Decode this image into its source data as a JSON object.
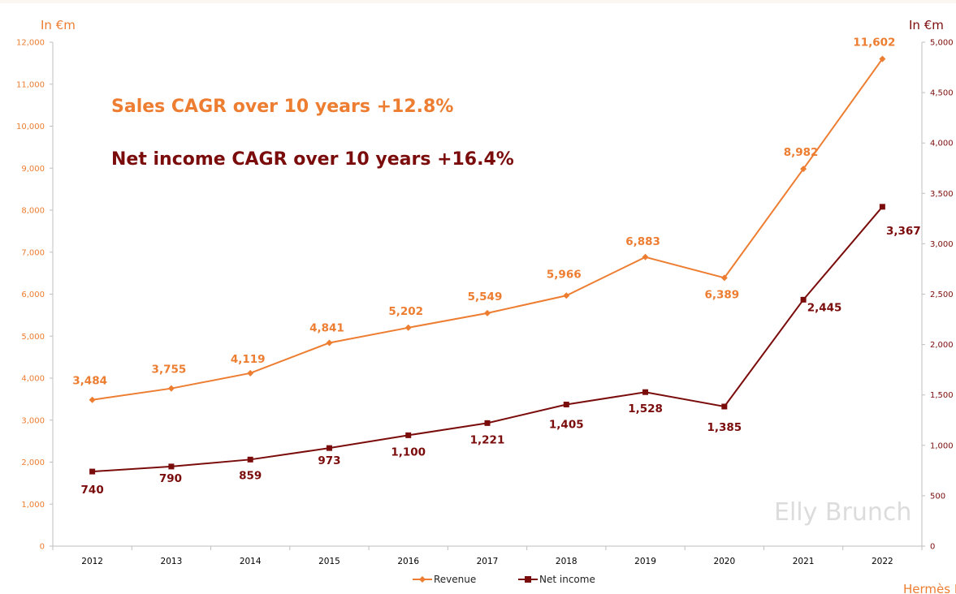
{
  "chart_data": {
    "type": "line",
    "title": "",
    "categories": [
      "2012",
      "2013",
      "2014",
      "2015",
      "2016",
      "2017",
      "2018",
      "2019",
      "2020",
      "2021",
      "2022"
    ],
    "series": [
      {
        "name": "Revenue",
        "axis": "left",
        "color": "#ed7d31",
        "values": [
          3484,
          3755,
          4119,
          4841,
          5202,
          5549,
          5966,
          6883,
          6389,
          8982,
          11602
        ],
        "labels": [
          "3,484",
          "3,755",
          "4,119",
          "4,841",
          "5,202",
          "5,549",
          "5,966",
          "6,883",
          "6,389",
          "8,982",
          "11,602"
        ]
      },
      {
        "name": "Net income",
        "axis": "right",
        "color": "#7b0c0c",
        "values": [
          740,
          790,
          859,
          973,
          1100,
          1221,
          1405,
          1528,
          1385,
          2445,
          3367
        ],
        "labels": [
          "740",
          "790",
          "859",
          "973",
          "1,100",
          "1,221",
          "1,405",
          "1,528",
          "1,385",
          "2,445",
          "3,367"
        ]
      }
    ],
    "left_axis": {
      "label": "In €m",
      "ylim": [
        0,
        12000
      ],
      "ticks": [
        "0",
        "1,000",
        "2,000",
        "3,000",
        "4,000",
        "5,000",
        "6,000",
        "7,000",
        "8,000",
        "9,000",
        "10,000",
        "11,000",
        "12,000"
      ]
    },
    "right_axis": {
      "label": "In €m",
      "ylim": [
        0,
        5000
      ],
      "ticks": [
        "0",
        "500",
        "1,000",
        "1,500",
        "2,000",
        "2,500",
        "3,000",
        "3,500",
        "4,000",
        "4,500",
        "5,000"
      ]
    },
    "annotations": {
      "sales_cagr": "Sales CAGR over 10 years  +12.8%",
      "net_income_cagr": "Net income CAGR over 10 years  +16.4%"
    },
    "legend": {
      "position": "bottom",
      "items": [
        "Revenue",
        "Net income"
      ]
    },
    "grid": false
  },
  "watermark": "Elly Brunch",
  "source": "Hermès I",
  "colors": {
    "revenue": "#ed7d31",
    "net_income": "#7b0c0c",
    "axis": "#bfbfbf"
  }
}
